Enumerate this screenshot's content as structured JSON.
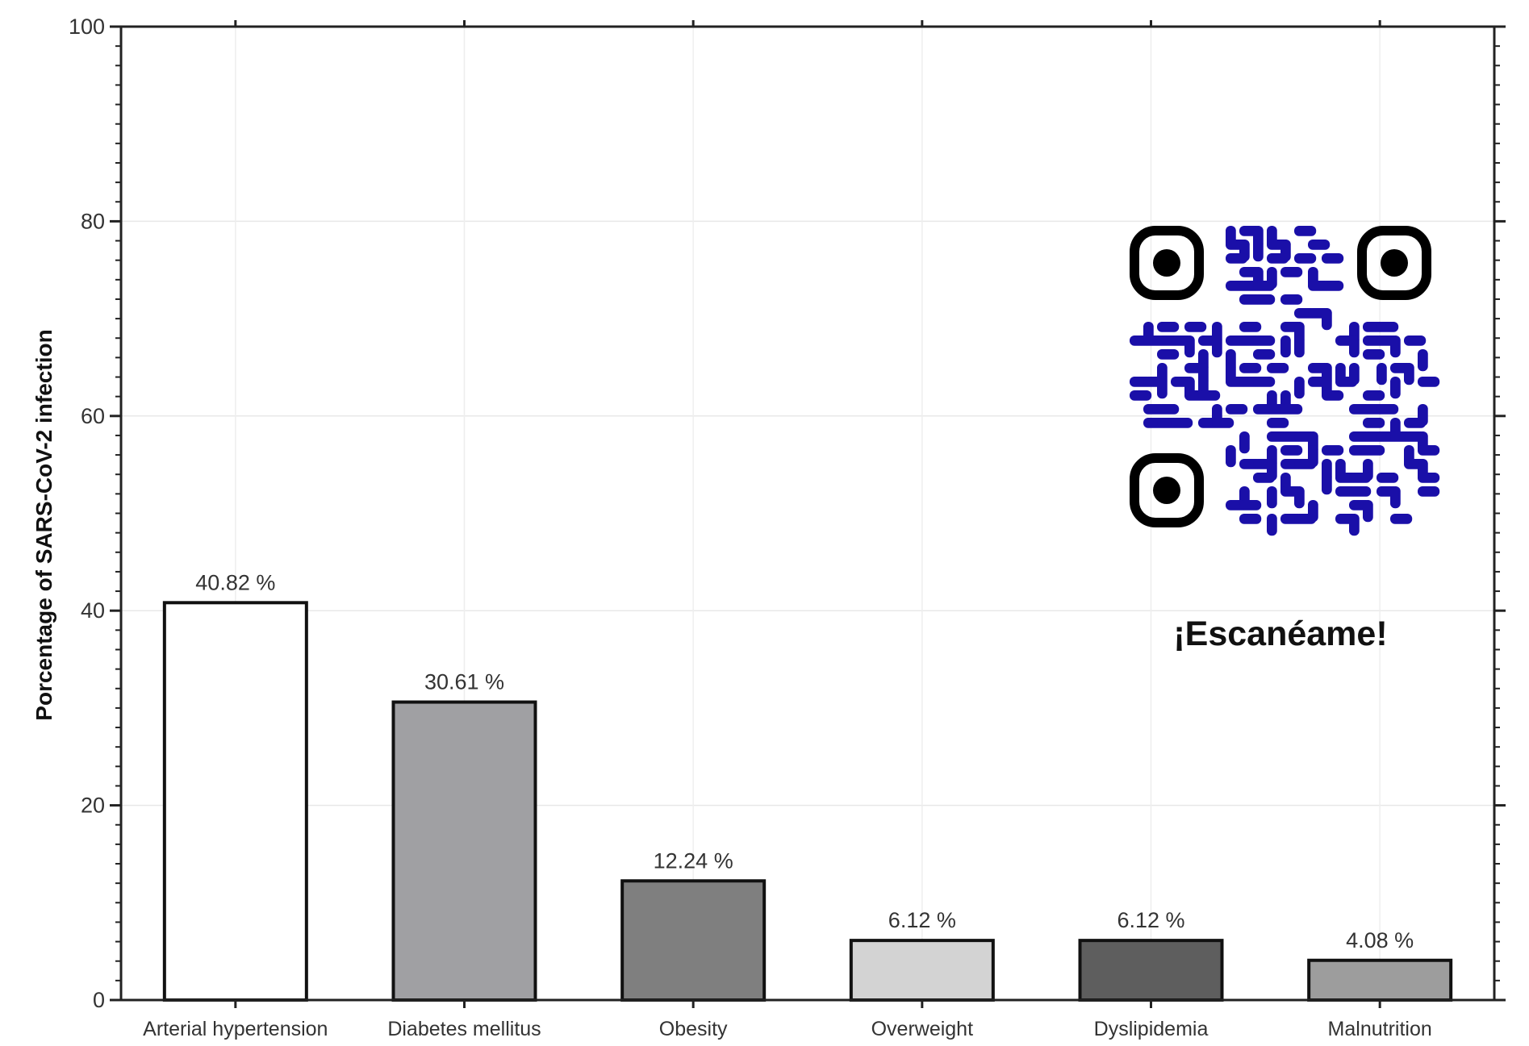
{
  "chart_data": {
    "type": "bar",
    "title": "",
    "xlabel": "",
    "ylabel": "Porcentage of  SARS-CoV-2 infection",
    "ylim": [
      0,
      100
    ],
    "yticks": [
      "0",
      "20",
      "40",
      "60",
      "80",
      "100"
    ],
    "grid": true,
    "categories": [
      "Arterial hypertension",
      "Diabetes mellitus",
      "Obesity",
      "Overweight",
      "Dyslipidemia",
      "Malnutrition"
    ],
    "values": [
      40.82,
      30.61,
      12.24,
      6.12,
      6.12,
      4.08
    ],
    "data_labels": [
      "40.82 %",
      "30.61 %",
      "12.24 %",
      "6.12 %",
      "6.12 %",
      "4.08 %"
    ],
    "bar_colors": [
      "#ffffff",
      "#a0a0a3",
      "#7f7f7f",
      "#d3d3d3",
      "#5e5e5e",
      "#9d9d9d"
    ]
  },
  "qr": {
    "caption": "¡Escanéame!",
    "color": "#1a0fa8",
    "finder_color": "#000000"
  }
}
